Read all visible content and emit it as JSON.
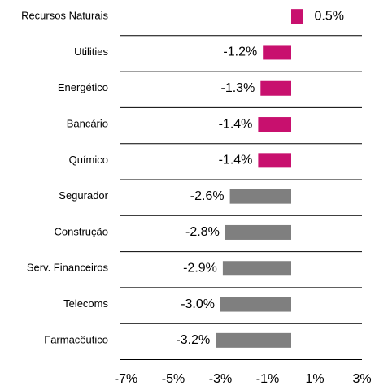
{
  "chart_data": {
    "type": "bar",
    "orientation": "horizontal",
    "categories": [
      "Recursos Naturais",
      "Utilities",
      "Energético",
      "Bancário",
      "Químico",
      "Segurador",
      "Construção",
      "Serv. Financeiros",
      "Telecoms",
      "Farmacêutico"
    ],
    "values": [
      0.5,
      -1.2,
      -1.3,
      -1.4,
      -1.4,
      -2.6,
      -2.8,
      -2.9,
      -3.0,
      -3.2
    ],
    "value_labels": [
      "0.5%",
      "-1.2%",
      "-1.3%",
      "-1.4%",
      "-1.4%",
      "-2.6%",
      "-2.8%",
      "-2.9%",
      "-3.0%",
      "-3.2%"
    ],
    "colors": [
      "#c8106e",
      "#c8106e",
      "#c8106e",
      "#c8106e",
      "#c8106e",
      "#7f7f7f",
      "#7f7f7f",
      "#7f7f7f",
      "#7f7f7f",
      "#7f7f7f"
    ],
    "xlim": [
      -7,
      3
    ],
    "xticks": [
      {
        "value": -7,
        "label": "-7%"
      },
      {
        "value": -5,
        "label": "-5%"
      },
      {
        "value": -3,
        "label": "-3%"
      },
      {
        "value": -1,
        "label": "-1%"
      },
      {
        "value": 1,
        "label": "1%"
      },
      {
        "value": 3,
        "label": "3%"
      }
    ]
  }
}
